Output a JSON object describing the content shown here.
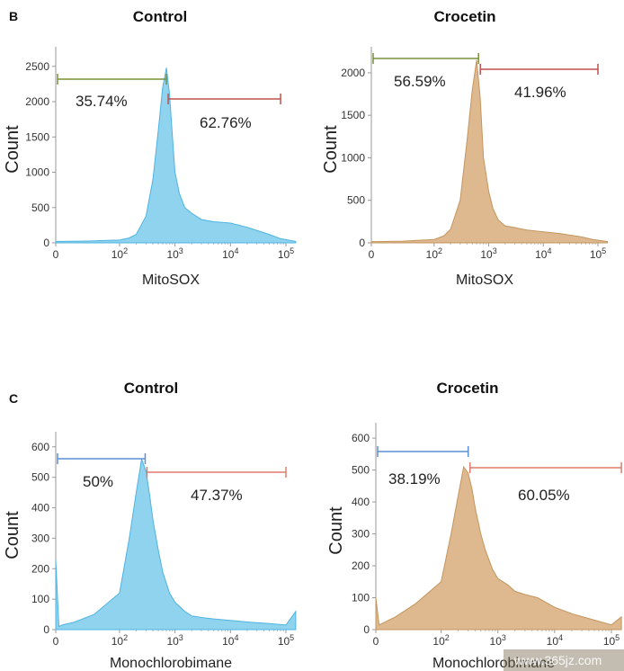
{
  "panels": {
    "B": "B",
    "C": "C"
  },
  "watermark": "www.365jz.com",
  "chart_data": [
    {
      "type": "area",
      "panel": "B",
      "title": "Control",
      "xlabel": "MitoSOX",
      "ylabel": "Count",
      "x_scale": "biexponential",
      "x_ticks": [
        "0",
        "10^2",
        "10^3",
        "10^4",
        "10^5"
      ],
      "y_ticks": [
        0,
        500,
        1000,
        1500,
        2000,
        2500
      ],
      "ylim": [
        0,
        2650
      ],
      "color": "#8fd3ef",
      "stroke": "#4fb3e0",
      "series": [
        {
          "x": [
            0,
            10,
            50,
            100,
            150,
            200,
            300,
            400,
            500,
            600,
            700,
            800,
            900,
            1000,
            1200,
            1500,
            2000,
            3000,
            5000,
            10000,
            20000,
            50000,
            80000,
            150000
          ],
          "y": [
            20,
            20,
            25,
            40,
            70,
            120,
            380,
            900,
            1600,
            2200,
            2480,
            2100,
            1500,
            1000,
            700,
            500,
            420,
            330,
            300,
            280,
            220,
            120,
            60,
            20
          ]
        }
      ],
      "gates": [
        {
          "label": "35.74%",
          "start": 0,
          "end": 700,
          "color": "#7a8f3f"
        },
        {
          "label": "62.76%",
          "start": 700,
          "end": 80000,
          "color": "#c0504d"
        }
      ]
    },
    {
      "type": "area",
      "panel": "B",
      "title": "Crocetin",
      "xlabel": "MitoSOX",
      "ylabel": "Count",
      "x_scale": "biexponential",
      "x_ticks": [
        "0",
        "10^2",
        "10^3",
        "10^4",
        "10^5"
      ],
      "y_ticks": [
        0,
        500,
        1000,
        1500,
        2000
      ],
      "ylim": [
        0,
        2200
      ],
      "color": "#deb88e",
      "stroke": "#c4955e",
      "series": [
        {
          "x": [
            0,
            10,
            50,
            100,
            150,
            200,
            300,
            400,
            500,
            600,
            700,
            800,
            1000,
            1200,
            1500,
            2000,
            3000,
            5000,
            10000,
            20000,
            50000,
            80000,
            150000
          ],
          "y": [
            15,
            15,
            20,
            40,
            80,
            160,
            500,
            1200,
            1800,
            2150,
            1700,
            1000,
            600,
            400,
            270,
            200,
            180,
            150,
            130,
            110,
            70,
            40,
            15
          ]
        }
      ],
      "gates": [
        {
          "label": "56.59%",
          "start": 0,
          "end": 650,
          "color": "#7a8f3f"
        },
        {
          "label": "41.96%",
          "start": 650,
          "end": 100000,
          "color": "#c0504d"
        }
      ]
    },
    {
      "type": "area",
      "panel": "C",
      "title": "Control",
      "xlabel": "Monochlorobimane",
      "ylabel": "Count",
      "x_scale": "biexponential",
      "x_ticks": [
        "0",
        "10^2",
        "10^3",
        "10^4",
        "10^5"
      ],
      "y_ticks": [
        0,
        100,
        200,
        300,
        400,
        500,
        600
      ],
      "ylim": [
        0,
        620
      ],
      "color": "#8fd3ef",
      "stroke": "#4fb3e0",
      "series": [
        {
          "x": [
            0,
            5,
            10,
            30,
            60,
            100,
            150,
            200,
            250,
            300,
            350,
            400,
            500,
            600,
            800,
            1000,
            1500,
            2000,
            3000,
            5000,
            10000,
            20000,
            50000,
            100000,
            150000
          ],
          "y": [
            230,
            10,
            15,
            25,
            50,
            120,
            300,
            450,
            560,
            520,
            440,
            360,
            260,
            190,
            120,
            90,
            60,
            45,
            40,
            35,
            30,
            25,
            20,
            15,
            60
          ]
        }
      ],
      "gates": [
        {
          "label": "50%",
          "start": 0,
          "end": 290,
          "color": "#5b8fd6"
        },
        {
          "label": "47.37%",
          "start": 290,
          "end": 100000,
          "color": "#e07a6d"
        }
      ]
    },
    {
      "type": "area",
      "panel": "C",
      "title": "Crocetin",
      "xlabel": "Monochlorobimane",
      "ylabel": "Count",
      "x_scale": "biexponential",
      "x_ticks": [
        "0",
        "10^2",
        "10^3",
        "10^4",
        "10^5"
      ],
      "y_ticks": [
        0,
        100,
        200,
        300,
        400,
        500,
        600
      ],
      "ylim": [
        0,
        620
      ],
      "color": "#deb88e",
      "stroke": "#c4955e",
      "series": [
        {
          "x": [
            0,
            5,
            10,
            30,
            60,
            100,
            150,
            200,
            250,
            300,
            350,
            400,
            500,
            600,
            800,
            1000,
            1500,
            2000,
            3000,
            5000,
            10000,
            20000,
            50000,
            100000,
            150000
          ],
          "y": [
            100,
            15,
            20,
            40,
            80,
            150,
            300,
            420,
            510,
            490,
            440,
            380,
            300,
            250,
            190,
            160,
            140,
            120,
            110,
            100,
            70,
            50,
            30,
            15,
            40
          ]
        }
      ],
      "gates": [
        {
          "label": "38.19%",
          "start": 0,
          "end": 300,
          "color": "#5b8fd6"
        },
        {
          "label": "60.05%",
          "start": 300,
          "end": 150000,
          "color": "#e07a6d"
        }
      ]
    }
  ]
}
